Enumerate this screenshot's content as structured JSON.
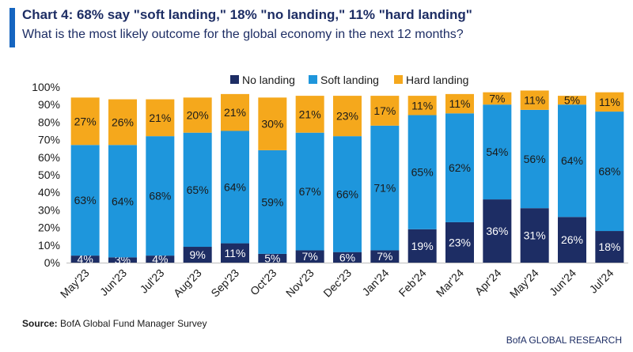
{
  "header": {
    "title": "Chart 4: 68% say \"soft landing,\" 18% \"no landing,\" 11% \"hard landing\"",
    "subtitle": "What is the most likely outcome for the global economy in the next 12 months?"
  },
  "footer": {
    "source_label": "Source:",
    "source_text": " BofA Global Fund Manager Survey",
    "credit": "BofA GLOBAL RESEARCH"
  },
  "colors": {
    "accent": "#1565c0",
    "no_landing": "#1d2d64",
    "soft_landing": "#1e96dc",
    "hard_landing": "#f5a81c"
  },
  "chart_data": {
    "type": "bar",
    "stacked": true,
    "categories": [
      "May'23",
      "Jun'23",
      "Jul'23",
      "Aug'23",
      "Sep'23",
      "Oct'23",
      "Nov'23",
      "Dec'23",
      "Jan'24",
      "Feb'24",
      "Mar'24",
      "Apr'24",
      "May'24",
      "Jun'24",
      "Jul'24"
    ],
    "series": [
      {
        "name": "No landing",
        "values": [
          4,
          3,
          4,
          9,
          11,
          5,
          7,
          6,
          7,
          19,
          23,
          36,
          31,
          26,
          18
        ]
      },
      {
        "name": "Soft landing",
        "values": [
          63,
          64,
          68,
          65,
          64,
          59,
          67,
          66,
          71,
          65,
          62,
          54,
          56,
          64,
          68
        ]
      },
      {
        "name": "Hard landing",
        "values": [
          27,
          26,
          21,
          20,
          21,
          30,
          21,
          23,
          17,
          11,
          11,
          7,
          11,
          5,
          11
        ]
      }
    ],
    "title": "Chart 4: 68% say \"soft landing,\" 18% \"no landing,\" 11% \"hard landing\"",
    "ylabel": "",
    "xlabel": "",
    "ylim": [
      0,
      100
    ],
    "y_ticks": [
      "0%",
      "10%",
      "20%",
      "30%",
      "40%",
      "50%",
      "60%",
      "70%",
      "80%",
      "90%",
      "100%"
    ],
    "legend_position": "top-right"
  }
}
